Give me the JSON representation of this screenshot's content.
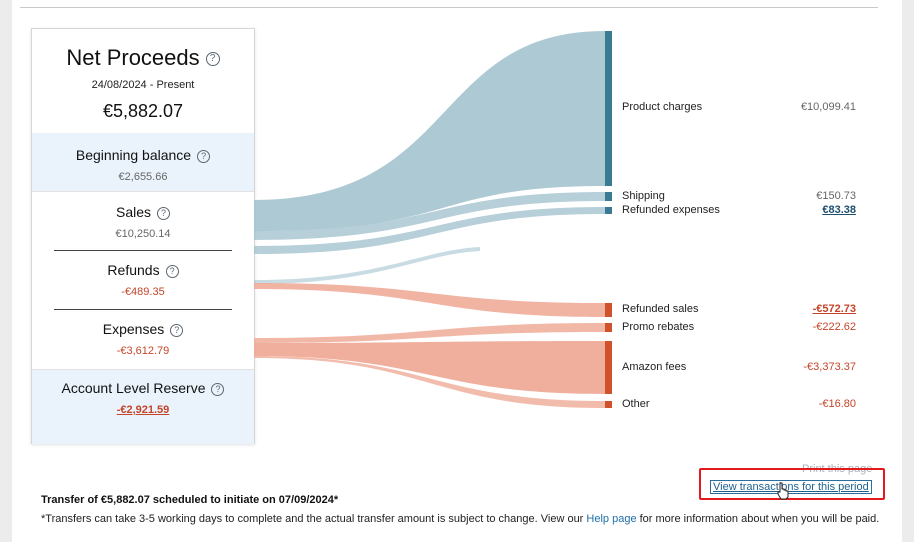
{
  "summary": {
    "title": "Net Proceeds",
    "period": "24/08/2024 - Present",
    "total": "€5,882.07",
    "sections": [
      {
        "label": "Beginning balance",
        "value": "€2,655.66"
      },
      {
        "label": "Sales",
        "value": "€10,250.14"
      },
      {
        "label": "Refunds",
        "value": "-€489.35"
      },
      {
        "label": "Expenses",
        "value": "-€3,612.79"
      },
      {
        "label": "Account Level Reserve",
        "value": "-€2,921.59"
      }
    ]
  },
  "breakdown": [
    {
      "label": "Product charges",
      "value": "€10,099.41"
    },
    {
      "label": "Shipping",
      "value": "€150.73"
    },
    {
      "label": "Refunded expenses",
      "value": "€83.38"
    },
    {
      "label": "Refunded sales",
      "value": "-€572.73"
    },
    {
      "label": "Promo rebates",
      "value": "-€222.62"
    },
    {
      "label": "Amazon fees",
      "value": "-€3,373.37"
    },
    {
      "label": "Other",
      "value": "-€16.80"
    }
  ],
  "colors": {
    "positive_flow": "#9fbfcc",
    "negative_flow": "#efab98",
    "positive_bar": "#3a7a93",
    "negative_bar": "#d0522a",
    "negative_text": "#c4452a"
  },
  "links": {
    "print": "Print this page",
    "view_transactions": "View transactions for this period"
  },
  "transfer": {
    "headline": "Transfer of €5,882.07 scheduled to initiate on 07/09/2024*",
    "note_before": "*Transfers can take 3-5 working days to complete and the actual transfer amount is subject to change. View our ",
    "help_link": "Help page",
    "note_after": " for more information about when you will be paid."
  }
}
